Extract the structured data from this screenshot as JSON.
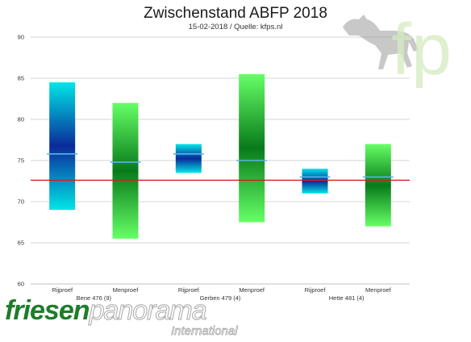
{
  "chart_data": {
    "type": "floating-bar",
    "title": "Zwischenstand ABFP 2018",
    "subtitle": "15-02-2018 / Quelle: kfps.nl",
    "ylim": [
      60,
      90
    ],
    "yticks": [
      "60",
      "65",
      "70",
      "75",
      "80",
      "85",
      "90"
    ],
    "grid": true,
    "reference_line": 72.6,
    "reference_color": "#d81e1e",
    "groups": [
      {
        "label": "Bene 476 (9)"
      },
      {
        "label": "Gerben 479 (4)"
      },
      {
        "label": "Hette 481 (4)"
      }
    ],
    "categories": [
      "Rijproef",
      "Menproef",
      "Rijproef",
      "Menproef",
      "Rijproef",
      "Menproef"
    ],
    "bars": [
      {
        "low": 69.0,
        "high": 84.5,
        "mean": 75.8,
        "kind": "rijproef"
      },
      {
        "low": 65.5,
        "high": 82.0,
        "mean": 74.8,
        "kind": "menproef"
      },
      {
        "low": 73.5,
        "high": 77.0,
        "mean": 75.8,
        "kind": "rijproef"
      },
      {
        "low": 67.5,
        "high": 85.5,
        "mean": 75.0,
        "kind": "menproef"
      },
      {
        "low": 71.0,
        "high": 74.0,
        "mean": 73.0,
        "kind": "rijproef"
      },
      {
        "low": 67.0,
        "high": 77.0,
        "mean": 73.0,
        "kind": "menproef"
      }
    ],
    "colors": {
      "rijproef_edge": "#00e6e6",
      "rijproef_core": "#0a2a9a",
      "menproef_edge": "#66ff66",
      "menproef_core": "#087a1a",
      "mean_line": "#5ab4e8",
      "grid": "#c8c8c8"
    }
  },
  "logo": {
    "word1": "friesen",
    "word2": "panorama",
    "sub": "International",
    "brand_mark": "fp",
    "colors": {
      "green": "#1e7d2a",
      "grey": "#a8a8a8"
    }
  }
}
